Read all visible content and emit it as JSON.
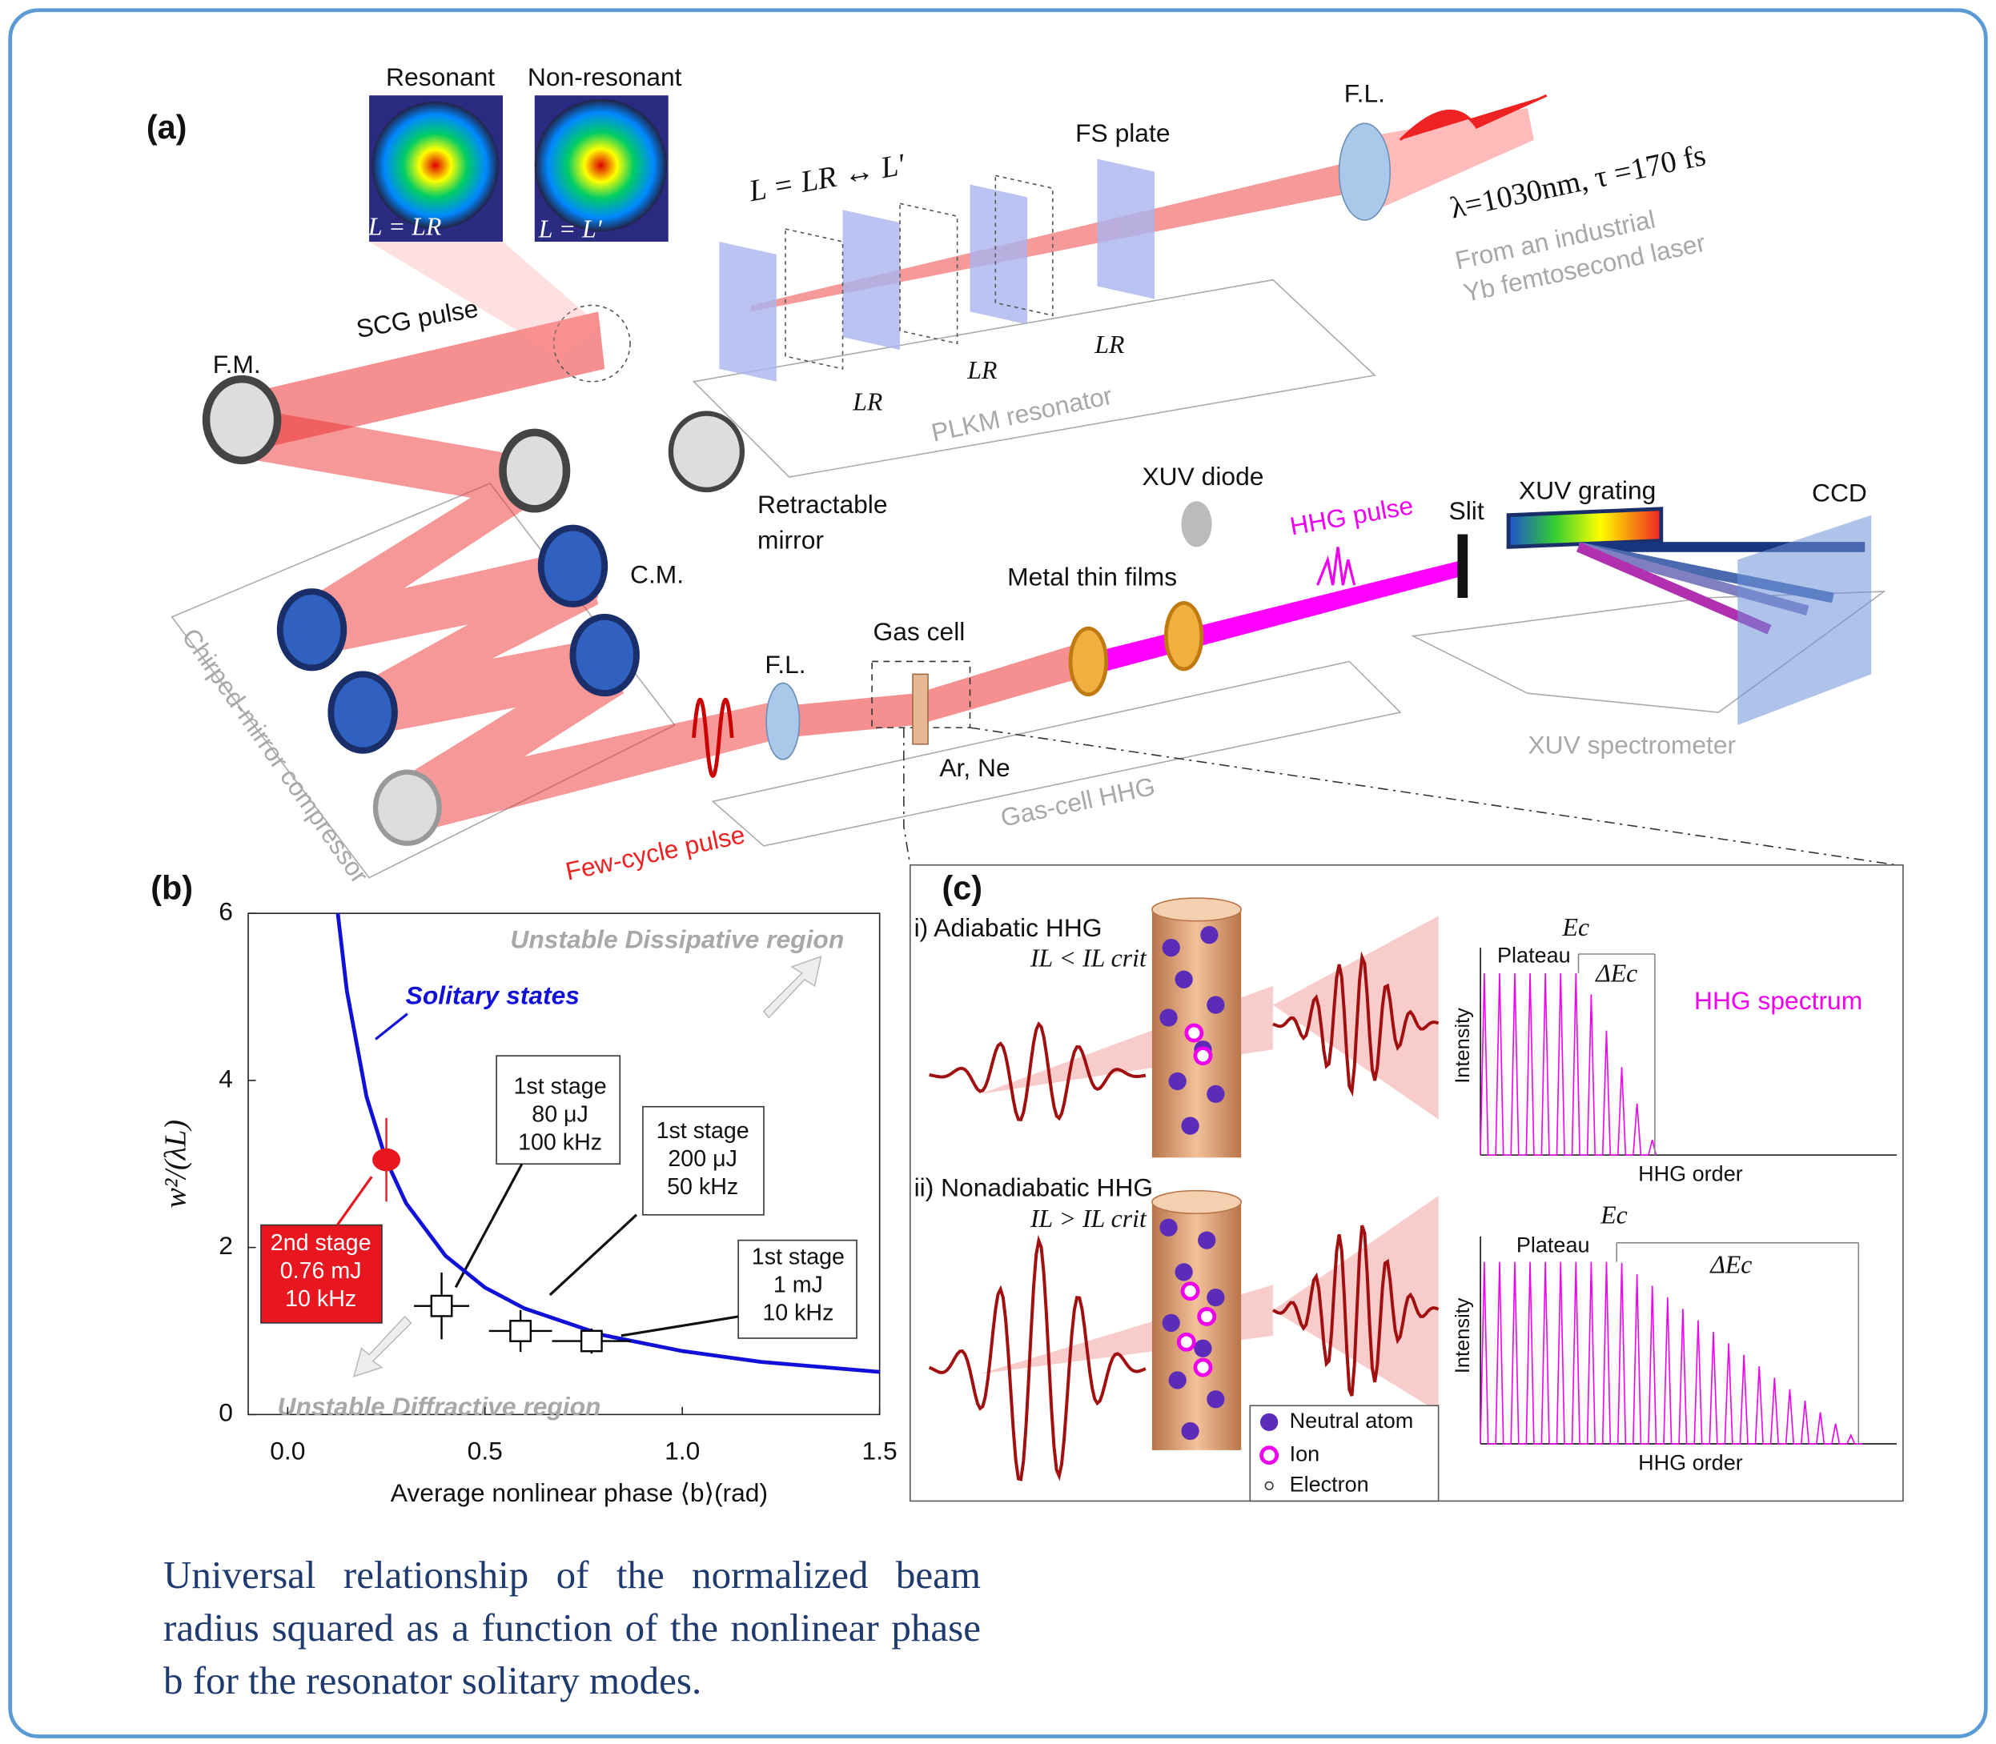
{
  "panel_a": {
    "label": "(a)",
    "resonant": "Resonant",
    "non_resonant": "Non-resonant",
    "inset_resonant": "L = LR",
    "inset_non_resonant": "L = L′",
    "cavity_length": "L = LR ↔ L′",
    "fs_plate": "FS plate",
    "fl_input": "F.L.",
    "laser_params": "λ=1030nm, τ =170 fs",
    "source": [
      "From an industrial",
      "Yb femtosecond laser"
    ],
    "scg_pulse": "SCG pulse",
    "fm": "F.M.",
    "lr": [
      "LR",
      "LR",
      "LR"
    ],
    "plkm": "PLKM resonator",
    "retractable": [
      "Retractable",
      "mirror"
    ],
    "cm": "C.M.",
    "compressor": "Chirped-mirror compressor",
    "xuv_diode": "XUV diode",
    "hhg_pulse": "HHG pulse",
    "slit": "Slit",
    "xuv_grating": "XUV grating",
    "ccd": "CCD",
    "metal_films": "Metal thin films",
    "gas_cell": "Gas cell",
    "fl_focus": "F.L.",
    "gas": "Ar, Ne",
    "gas_cell_hhg": "Gas-cell HHG",
    "spectrometer": "XUV spectrometer",
    "few_cycle": "Few-cycle pulse"
  },
  "chart_data": {
    "type": "scatter",
    "label": "(b)",
    "x_label": "Average nonlinear phase ⟨b⟩(rad)",
    "y_label": "w²/(λL)",
    "xlim": [
      -0.1,
      1.5
    ],
    "xticks": [
      {
        "value": 0,
        "label": "0.0"
      },
      0.5,
      {
        "value": 1,
        "label": "1.0"
      },
      1.5
    ],
    "ylim": [
      0,
      6
    ],
    "yticks": [
      0,
      2,
      4,
      6
    ],
    "annotations": [
      "Unstable Dissipative region",
      "Unstable Diffractive region"
    ],
    "series": [
      {
        "name": "Solitary states",
        "color": "#1010d8",
        "x": [
          0.127,
          0.15,
          0.2,
          0.25,
          0.3,
          0.4,
          0.5,
          0.6,
          0.8,
          1.0,
          1.2,
          1.5
        ],
        "values": [
          6,
          5.07,
          3.8,
          3.04,
          2.53,
          1.9,
          1.52,
          1.27,
          0.95,
          0.76,
          0.63,
          0.51
        ]
      },
      {
        "color": "#e8161e",
        "x": [
          0.25
        ],
        "values": [
          3.05
        ],
        "yerr": [
          0.5
        ],
        "callouts": [
          [
            "2nd stage",
            "0.76 mJ",
            "10 kHz"
          ]
        ]
      },
      {
        "color": "#000000",
        "x": [
          0.39,
          0.59,
          0.77
        ],
        "values": [
          1.3,
          1.0,
          0.88
        ],
        "xerr": [
          0.07,
          0.08,
          0.1
        ],
        "yerr": [
          0.4,
          0.25,
          0.15
        ],
        "callouts": [
          [
            "1st stage",
            "80 μJ",
            "100 kHz"
          ],
          [
            "1st stage",
            "200 μJ",
            "50 kHz"
          ],
          [
            "1st stage",
            "1 mJ",
            "10 kHz"
          ]
        ]
      }
    ]
  },
  "panel_c": {
    "label": "(c)",
    "adiabatic": "i) Adiabatic HHG",
    "cond_low": "IL < IL crit",
    "nonadiabatic": "ii) Nonadiabatic HHG",
    "cond_high": "IL > IL crit",
    "plateau": [
      "Plateau",
      "Plateau"
    ],
    "ec": [
      "Ec",
      "Ec"
    ],
    "delta_ec": [
      "ΔEc",
      "ΔEc"
    ],
    "hhg_spectrum": "HHG spectrum",
    "intensity": [
      "Intensity",
      "Intensity"
    ],
    "hhg_order": [
      "HHG order",
      "HHG order"
    ],
    "legend": [
      "Neutral atom",
      "Ion",
      "Electron"
    ]
  },
  "caption": "Universal relationship of the normalized beam radius squared as a function of the nonlinear phase b for the resonator solitary modes."
}
